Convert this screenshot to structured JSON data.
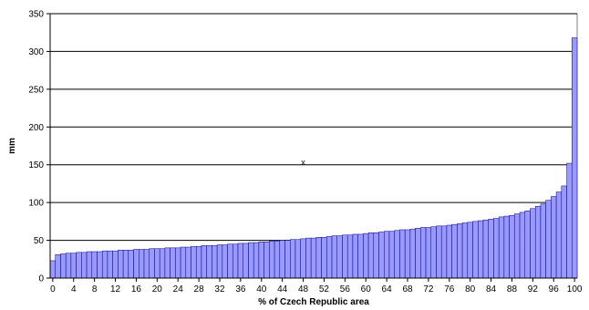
{
  "chart_data": {
    "type": "bar",
    "title": "",
    "xlabel": "% of Czech Republic area",
    "ylabel": "mm",
    "ylim": [
      0,
      350
    ],
    "xlim": [
      0,
      100
    ],
    "y_ticks": [
      0,
      50,
      100,
      150,
      200,
      250,
      300,
      350
    ],
    "x_ticks": [
      0,
      4,
      8,
      12,
      16,
      20,
      24,
      28,
      32,
      36,
      40,
      44,
      48,
      52,
      56,
      60,
      64,
      68,
      72,
      76,
      80,
      84,
      88,
      92,
      96,
      100
    ],
    "grid": "horizontal",
    "legend": "none",
    "annotation": {
      "text": "x",
      "x": 48,
      "y": 153
    },
    "colors": {
      "bar_fill": "#9999ff",
      "bar_stroke": "#000080",
      "gridline": "#000000"
    },
    "series": [
      {
        "values": [
          23,
          31,
          32,
          33,
          33,
          34,
          34,
          35,
          35,
          35,
          36,
          36,
          36,
          37,
          37,
          37,
          38,
          38,
          38,
          39,
          39,
          39,
          40,
          40,
          40,
          41,
          41,
          42,
          42,
          43,
          43,
          43,
          44,
          44,
          45,
          45,
          46,
          46,
          47,
          47,
          48,
          48,
          49,
          49,
          50,
          50,
          51,
          51,
          52,
          53,
          53,
          54,
          54,
          55,
          56,
          56,
          57,
          57,
          58,
          58,
          59,
          60,
          60,
          61,
          62,
          62,
          63,
          64,
          64,
          65,
          66,
          67,
          67,
          68,
          69,
          69,
          70,
          71,
          72,
          73,
          74,
          75,
          76,
          77,
          78,
          79,
          81,
          82,
          83,
          85,
          87,
          89,
          92,
          95,
          98,
          103,
          108,
          114,
          122,
          152,
          318
        ]
      }
    ]
  }
}
